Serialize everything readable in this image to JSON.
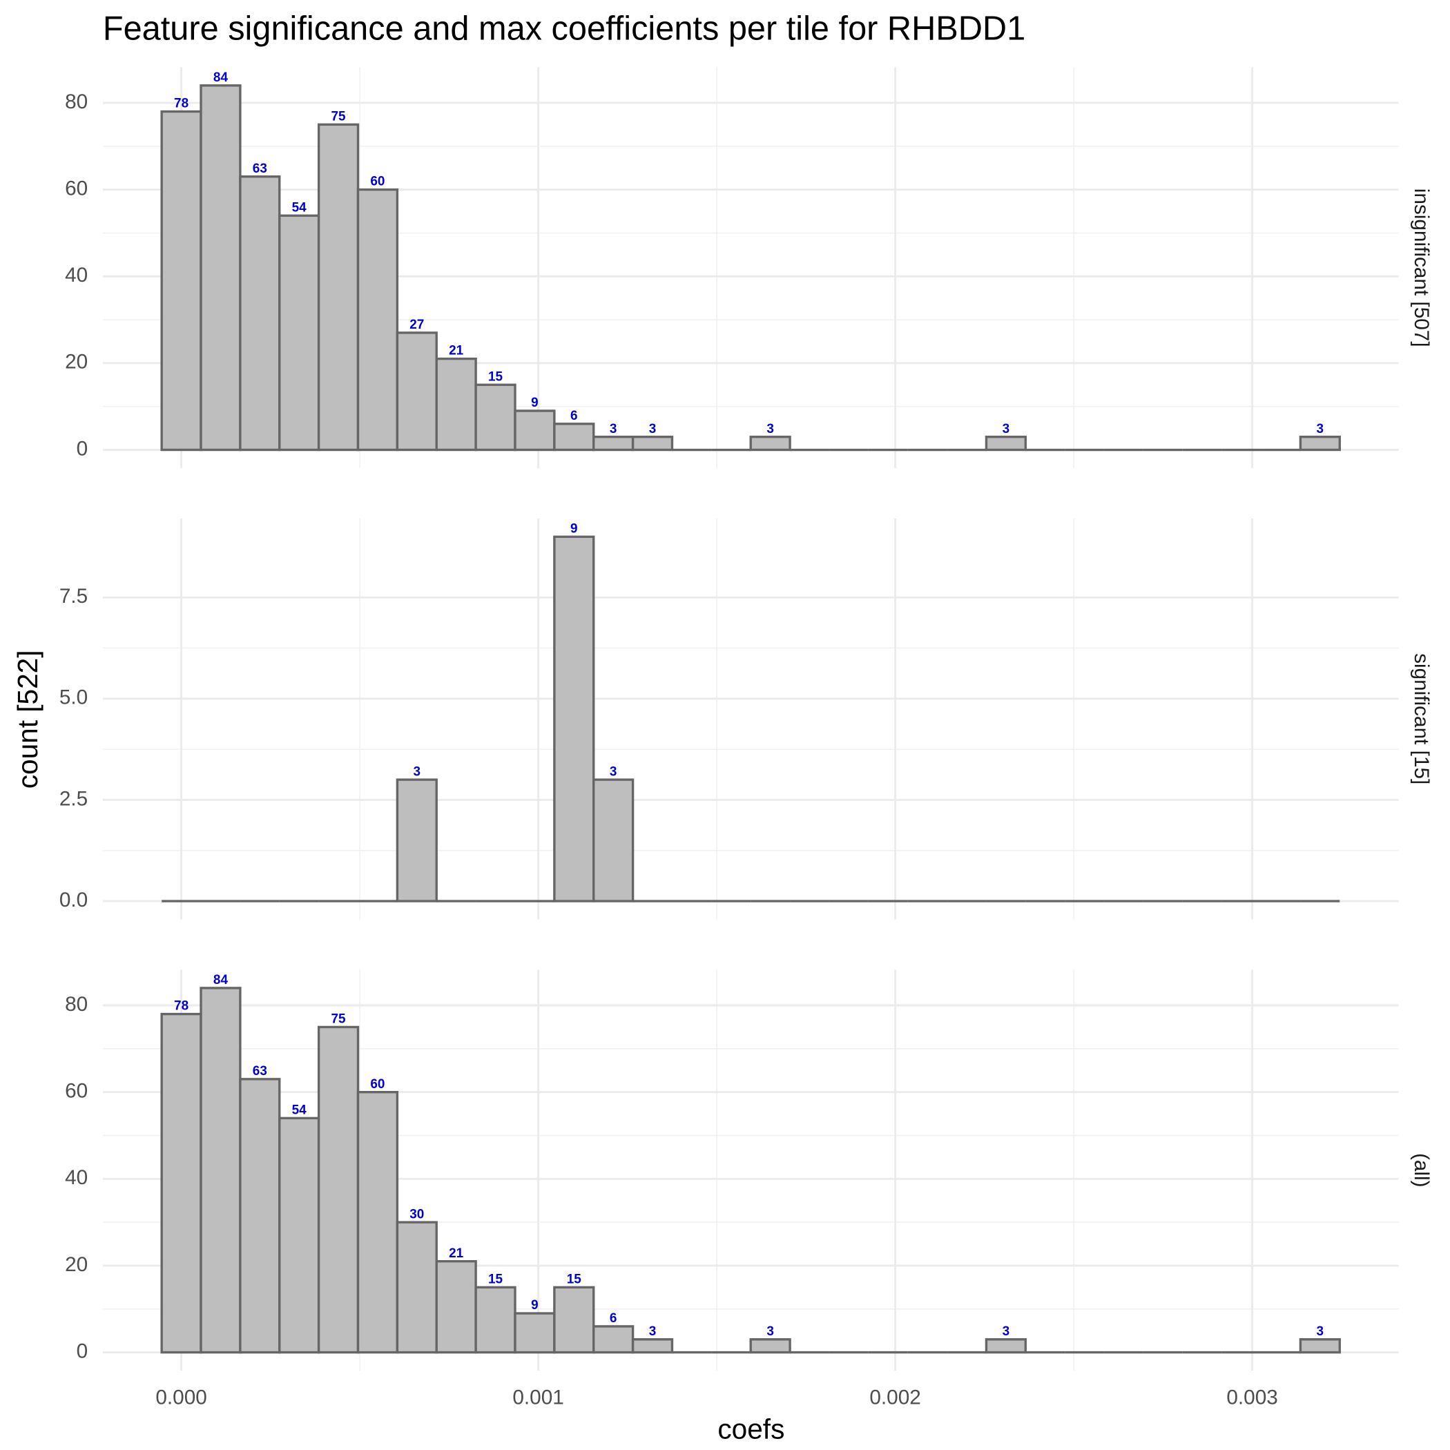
{
  "chart_data": {
    "type": "histogram",
    "title": "Feature significance and max coefficients per tile for RHBDD1",
    "x_label": "coefs",
    "y_label": "count [522]",
    "bins": [
      -5.5e-05,
      5.5e-05,
      0.000165,
      0.000275,
      0.000385,
      0.000495,
      0.000605,
      0.000715,
      0.000825,
      0.000935,
      0.001045,
      0.001155,
      0.001265,
      0.001375,
      0.001485,
      0.001595,
      0.001705,
      0.001815,
      0.001925,
      0.002035,
      0.002145,
      0.002255,
      0.002365,
      0.002475,
      0.002585,
      0.002695,
      0.002805,
      0.002915,
      0.003025,
      0.003135,
      0.003245
    ],
    "xlim": [
      -0.00022,
      0.00341
    ],
    "xticks": [
      {
        "value": 0,
        "label": "0.000"
      },
      {
        "value": 0.001,
        "label": "0.001"
      },
      {
        "value": 0.002,
        "label": "0.002"
      },
      {
        "value": 0.003,
        "label": "0.003"
      }
    ],
    "grid": true,
    "color": "#bebebe",
    "edgecolor": "#666666",
    "label_color": "#0000cc",
    "facets": [
      {
        "name": "insignificant [507]",
        "values": [
          78,
          84,
          63,
          54,
          75,
          60,
          27,
          21,
          15,
          9,
          6,
          3,
          3,
          0,
          0,
          3,
          0,
          0,
          0,
          0,
          0,
          3,
          0,
          0,
          0,
          0,
          0,
          0,
          0,
          3
        ],
        "ylim": [
          -4.2,
          88.2
        ],
        "yticks": [
          0,
          20,
          40,
          60,
          80
        ]
      },
      {
        "name": "significant [15]",
        "values": [
          0,
          0,
          0,
          0,
          0,
          0,
          3,
          0,
          0,
          0,
          9,
          3,
          0,
          0,
          0,
          0,
          0,
          0,
          0,
          0,
          0,
          0,
          0,
          0,
          0,
          0,
          0,
          0,
          0,
          0
        ],
        "ylim": [
          -0.45,
          9.45
        ],
        "yticks": [
          {
            "value": 0,
            "label": "0.0"
          },
          2.5,
          {
            "value": 5,
            "label": "5.0"
          },
          7.5
        ]
      },
      {
        "name": "(all)",
        "values": [
          78,
          84,
          63,
          54,
          75,
          60,
          30,
          21,
          15,
          9,
          15,
          6,
          3,
          0,
          0,
          3,
          0,
          0,
          0,
          0,
          0,
          3,
          0,
          0,
          0,
          0,
          0,
          0,
          0,
          3
        ],
        "ylim": [
          -4.2,
          88.2
        ],
        "yticks": [
          0,
          20,
          40,
          60,
          80
        ]
      }
    ]
  }
}
